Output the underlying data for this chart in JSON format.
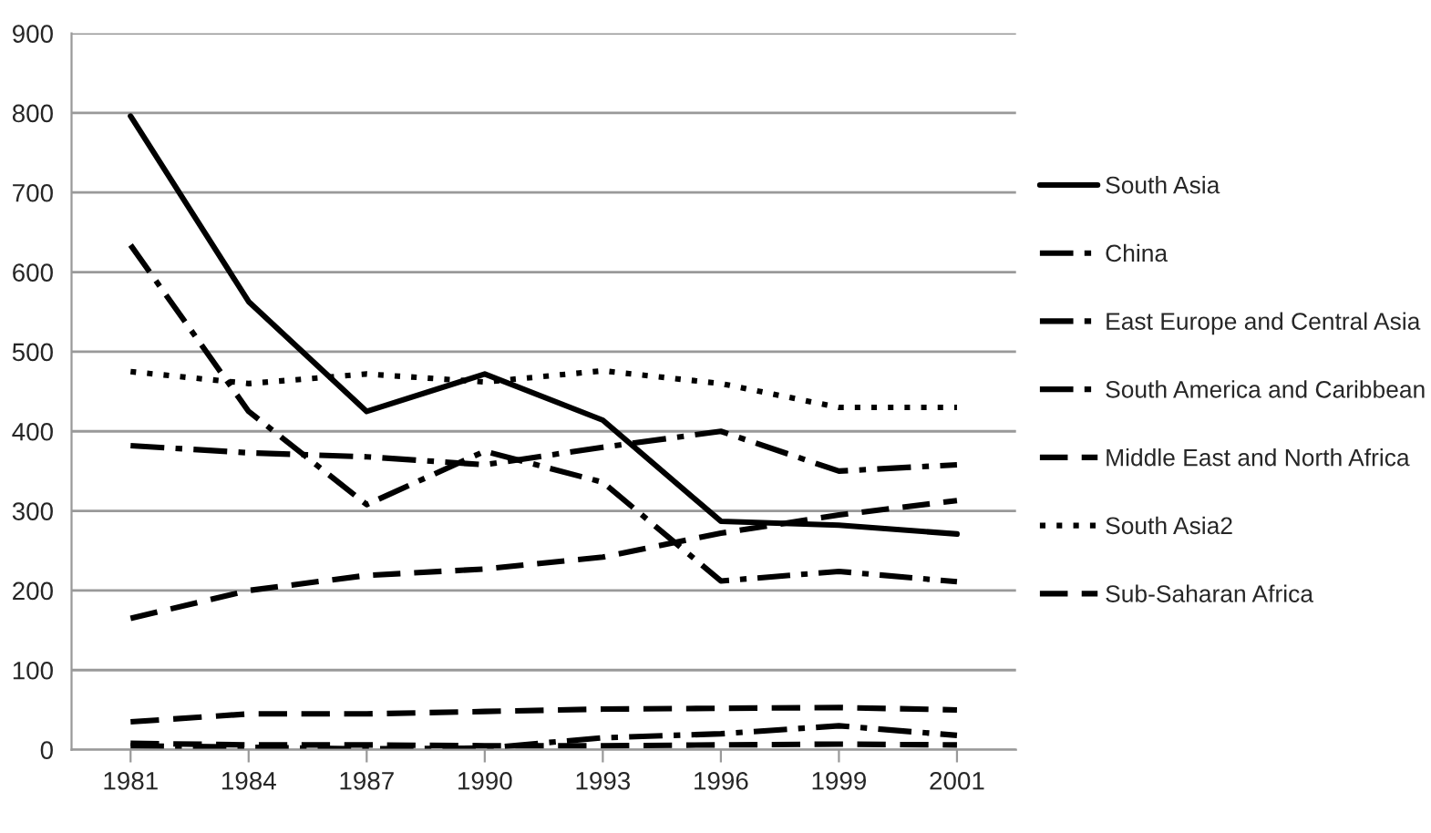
{
  "chart_data": {
    "type": "line",
    "categories": [
      "1981",
      "1984",
      "1987",
      "1990",
      "1993",
      "1996",
      "1999",
      "2001"
    ],
    "series": [
      {
        "name": "South Asia",
        "color": "#000000",
        "line_style": "solid",
        "values": [
          796,
          563,
          425,
          472,
          414,
          287,
          282,
          271
        ]
      },
      {
        "name": "China",
        "color": "#000000",
        "line_style": "dashdot",
        "values": [
          634,
          425,
          308,
          375,
          336,
          212,
          224,
          211
        ]
      },
      {
        "name": "East Europe and Central Asia",
        "color": "#000000",
        "line_style": "dashdot",
        "values": [
          5,
          3,
          1,
          2,
          15,
          20,
          30,
          18
        ]
      },
      {
        "name": "South America and Caribbean",
        "color": "#000000",
        "line_style": "dashdot",
        "values": [
          382,
          373,
          368,
          358,
          380,
          400,
          350,
          358
        ]
      },
      {
        "name": "Middle East and North Africa",
        "color": "#000000",
        "line_style": "dashed",
        "values": [
          35,
          45,
          45,
          48,
          51,
          52,
          53,
          50
        ]
      },
      {
        "name": "South Asia2",
        "color": "#000000",
        "line_style": "dotted",
        "values": [
          475,
          460,
          472,
          462,
          476,
          460,
          430,
          430
        ]
      },
      {
        "name": "Sub-Saharan Africa",
        "color": "#000000",
        "line_style": "dashed",
        "values": [
          165,
          200,
          219,
          227,
          242,
          272,
          295,
          313
        ]
      },
      {
        "color": "#000000",
        "line_style": "dashed",
        "values": [
          8,
          6,
          6,
          5,
          5,
          6,
          7,
          6
        ]
      }
    ],
    "ylim": [
      0,
      900
    ],
    "yticks": [
      0,
      100,
      200,
      300,
      400,
      500,
      600,
      700,
      800,
      900
    ],
    "grid": "y",
    "legend": "right",
    "marker": "none"
  }
}
